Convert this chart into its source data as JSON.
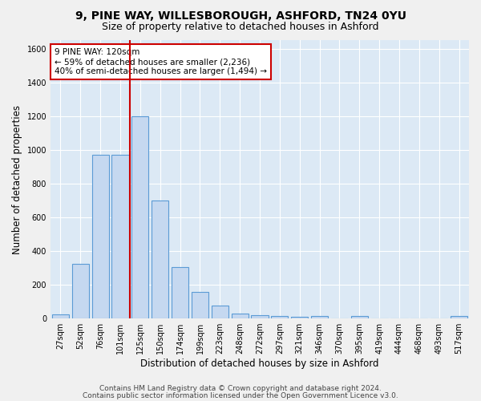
{
  "title1": "9, PINE WAY, WILLESBOROUGH, ASHFORD, TN24 0YU",
  "title2": "Size of property relative to detached houses in Ashford",
  "xlabel": "Distribution of detached houses by size in Ashford",
  "ylabel": "Number of detached properties",
  "footer1": "Contains HM Land Registry data © Crown copyright and database right 2024.",
  "footer2": "Contains public sector information licensed under the Open Government Licence v3.0.",
  "annotation_line1": "9 PINE WAY: 120sqm",
  "annotation_line2": "← 59% of detached houses are smaller (2,236)",
  "annotation_line3": "40% of semi-detached houses are larger (1,494) →",
  "bar_labels": [
    "27sqm",
    "52sqm",
    "76sqm",
    "101sqm",
    "125sqm",
    "150sqm",
    "174sqm",
    "199sqm",
    "223sqm",
    "248sqm",
    "272sqm",
    "297sqm",
    "321sqm",
    "346sqm",
    "370sqm",
    "395sqm",
    "419sqm",
    "444sqm",
    "468sqm",
    "493sqm",
    "517sqm"
  ],
  "bar_values": [
    25,
    325,
    970,
    970,
    1200,
    700,
    305,
    155,
    75,
    30,
    20,
    15,
    10,
    15,
    0,
    15,
    0,
    0,
    0,
    0,
    15
  ],
  "bar_color": "#c5d8f0",
  "bar_edge_color": "#5b9bd5",
  "red_line_x": 3.5,
  "ylim": [
    0,
    1650
  ],
  "yticks": [
    0,
    200,
    400,
    600,
    800,
    1000,
    1200,
    1400,
    1600
  ],
  "bg_color": "#dce9f5",
  "grid_color": "#ffffff",
  "fig_bg_color": "#f0f0f0",
  "annotation_box_color": "#ffffff",
  "annotation_box_edge": "#cc0000",
  "red_line_color": "#cc0000",
  "title_fontsize": 10,
  "subtitle_fontsize": 9,
  "axis_label_fontsize": 8.5,
  "tick_fontsize": 7,
  "footer_fontsize": 6.5,
  "annotation_fontsize": 7.5
}
